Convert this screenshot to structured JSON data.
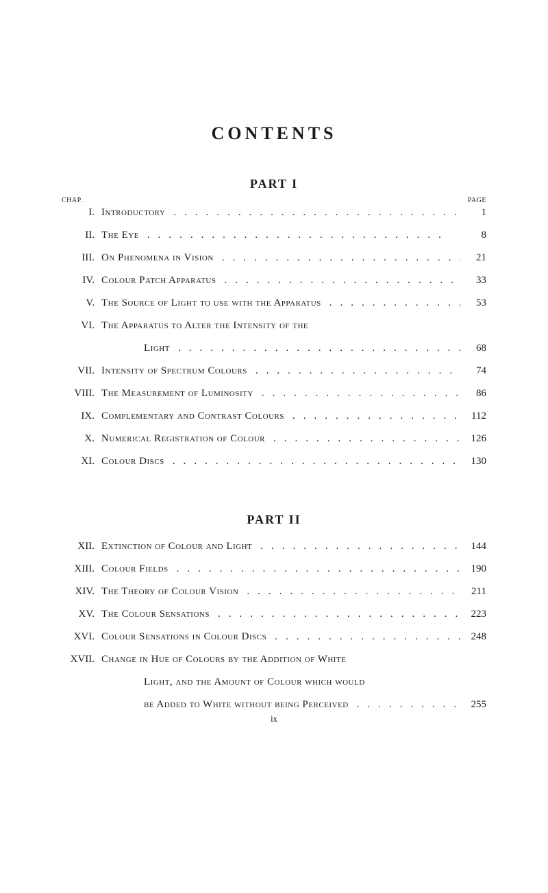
{
  "title": "CONTENTS",
  "part1_heading": "PART I",
  "part2_heading": "PART II",
  "chap_label": "CHAP.",
  "page_label": "PAGE",
  "footer_roman": "ix",
  "part1": [
    {
      "roman": "I.",
      "text": "Introductory",
      "page": "1"
    },
    {
      "roman": "II.",
      "text": "The Eye",
      "page": "8"
    },
    {
      "roman": "III.",
      "text": "On Phenomena in Vision",
      "page": "21"
    },
    {
      "roman": "IV.",
      "text": "Colour Patch Apparatus",
      "page": "33"
    },
    {
      "roman": "V.",
      "text": "The Source of Light to use with the Apparatus",
      "page": "53"
    },
    {
      "roman": "VI.",
      "text": "The Apparatus to Alter the Intensity of the",
      "page": ""
    },
    {
      "roman": "",
      "text": "Light",
      "page": "68",
      "cont": true
    },
    {
      "roman": "VII.",
      "text": "Intensity of Spectrum Colours",
      "page": "74"
    },
    {
      "roman": "VIII.",
      "text": "The Measurement of Luminosity",
      "page": "86"
    },
    {
      "roman": "IX.",
      "text": "Complementary and Contrast Colours",
      "page": "112"
    },
    {
      "roman": "X.",
      "text": "Numerical Registration of Colour",
      "page": "126"
    },
    {
      "roman": "XI.",
      "text": "Colour Discs",
      "page": "130"
    }
  ],
  "part2": [
    {
      "roman": "XII.",
      "text": "Extinction of Colour and Light",
      "page": "144"
    },
    {
      "roman": "XIII.",
      "text": "Colour Fields",
      "page": "190"
    },
    {
      "roman": "XIV.",
      "text": "The Theory of Colour Vision",
      "page": "211"
    },
    {
      "roman": "XV.",
      "text": "The Colour Sensations",
      "page": "223"
    },
    {
      "roman": "XVI.",
      "text": "Colour Sensations in Colour Discs",
      "page": "248"
    },
    {
      "roman": "XVII.",
      "text": "Change in Hue of Colours by the Addition of White",
      "page": ""
    },
    {
      "roman": "",
      "text": "Light, and the Amount of Colour which would",
      "page": "",
      "cont": true
    },
    {
      "roman": "",
      "text": "be Added to White without being Perceived",
      "page": "255",
      "cont": true
    }
  ]
}
